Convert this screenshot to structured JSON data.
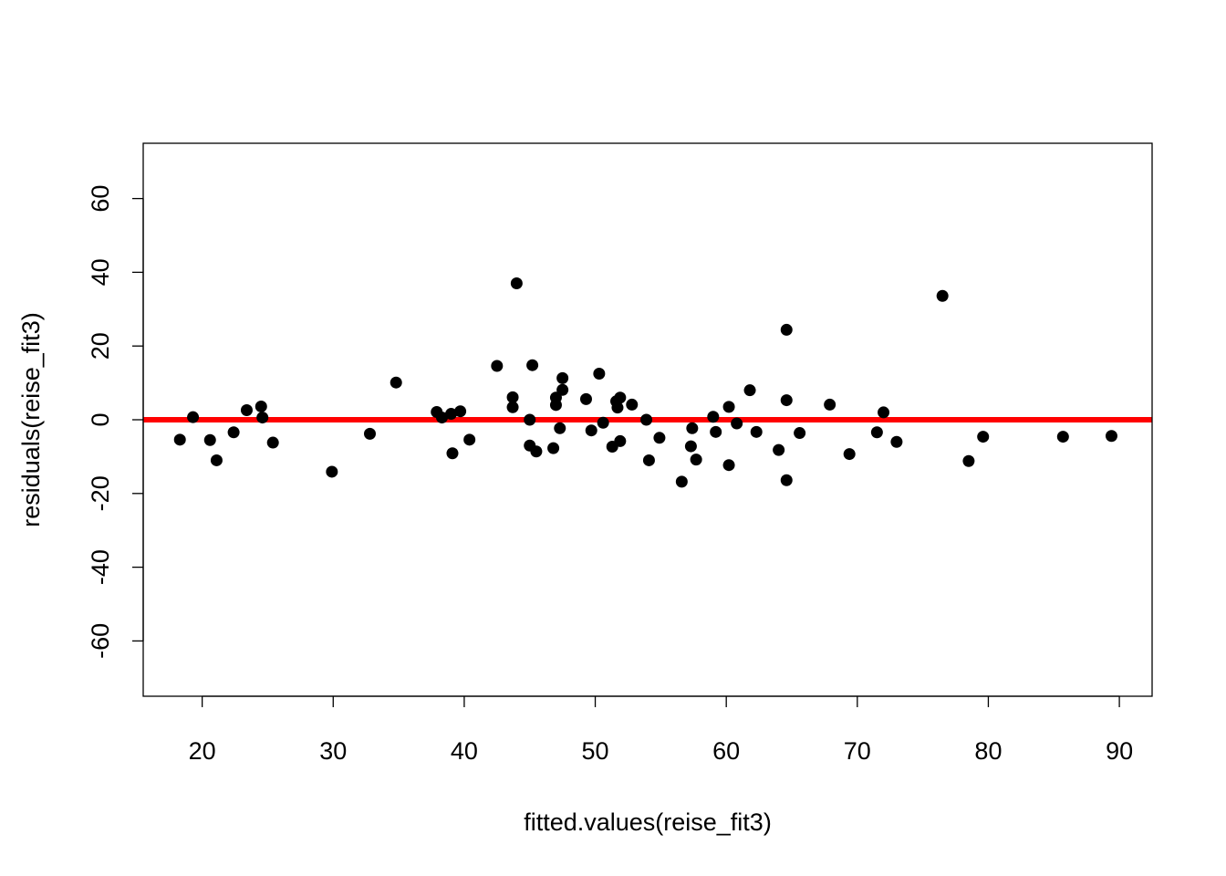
{
  "chart_data": {
    "type": "scatter",
    "title": "",
    "xlabel": "fitted.values(reise_fit3)",
    "ylabel": "residuals(reise_fit3)",
    "xlim": [
      15.5,
      92.5
    ],
    "ylim": [
      -75,
      75
    ],
    "xticks": [
      20,
      30,
      40,
      50,
      60,
      70,
      80,
      90
    ],
    "yticks": [
      -60,
      -40,
      -20,
      0,
      20,
      40,
      60
    ],
    "grid": false,
    "legend": "none",
    "point_color": "#000000",
    "reference_line": {
      "y": 0,
      "color": "#ff0000"
    },
    "points": [
      [
        18.3,
        -5.4
      ],
      [
        19.3,
        0.7
      ],
      [
        20.6,
        -5.5
      ],
      [
        21.1,
        -11.0
      ],
      [
        22.4,
        -3.4
      ],
      [
        23.4,
        2.6
      ],
      [
        24.5,
        3.6
      ],
      [
        24.6,
        0.6
      ],
      [
        25.4,
        -6.2
      ],
      [
        29.9,
        -14.1
      ],
      [
        32.8,
        -3.8
      ],
      [
        34.8,
        10.1
      ],
      [
        37.9,
        2.1
      ],
      [
        38.3,
        0.6
      ],
      [
        39.0,
        1.6
      ],
      [
        39.1,
        -9.1
      ],
      [
        39.7,
        2.3
      ],
      [
        40.4,
        -5.4
      ],
      [
        42.5,
        14.6
      ],
      [
        43.7,
        6.1
      ],
      [
        43.7,
        3.4
      ],
      [
        44.0,
        37.0
      ],
      [
        45.0,
        0.0
      ],
      [
        45.0,
        -7.0
      ],
      [
        45.2,
        14.8
      ],
      [
        45.5,
        -8.6
      ],
      [
        46.8,
        -7.7
      ],
      [
        47.0,
        6.0
      ],
      [
        47.0,
        4.0
      ],
      [
        47.3,
        -2.3
      ],
      [
        47.5,
        11.3
      ],
      [
        47.5,
        8.1
      ],
      [
        49.3,
        5.6
      ],
      [
        49.7,
        -2.9
      ],
      [
        50.3,
        12.5
      ],
      [
        50.6,
        -0.8
      ],
      [
        51.3,
        -7.3
      ],
      [
        51.6,
        5.0
      ],
      [
        51.7,
        3.3
      ],
      [
        51.9,
        6.0
      ],
      [
        51.9,
        -5.8
      ],
      [
        52.8,
        4.1
      ],
      [
        53.9,
        0.0
      ],
      [
        54.1,
        -11.0
      ],
      [
        54.9,
        -4.9
      ],
      [
        56.6,
        -16.8
      ],
      [
        57.3,
        -7.2
      ],
      [
        57.4,
        -2.3
      ],
      [
        57.7,
        -10.8
      ],
      [
        59.0,
        0.8
      ],
      [
        59.2,
        -3.3
      ],
      [
        60.2,
        3.5
      ],
      [
        60.2,
        -12.3
      ],
      [
        60.8,
        -1.0
      ],
      [
        61.8,
        8.0
      ],
      [
        62.3,
        -3.3
      ],
      [
        64.0,
        -8.2
      ],
      [
        64.6,
        24.4
      ],
      [
        64.6,
        5.3
      ],
      [
        64.6,
        -16.4
      ],
      [
        65.6,
        -3.6
      ],
      [
        67.9,
        4.1
      ],
      [
        69.4,
        -9.3
      ],
      [
        71.5,
        -3.4
      ],
      [
        72.0,
        2.0
      ],
      [
        73.0,
        -6.0
      ],
      [
        76.5,
        33.6
      ],
      [
        78.5,
        -11.2
      ],
      [
        79.6,
        -4.6
      ],
      [
        85.7,
        -4.6
      ],
      [
        89.4,
        -4.4
      ]
    ]
  }
}
